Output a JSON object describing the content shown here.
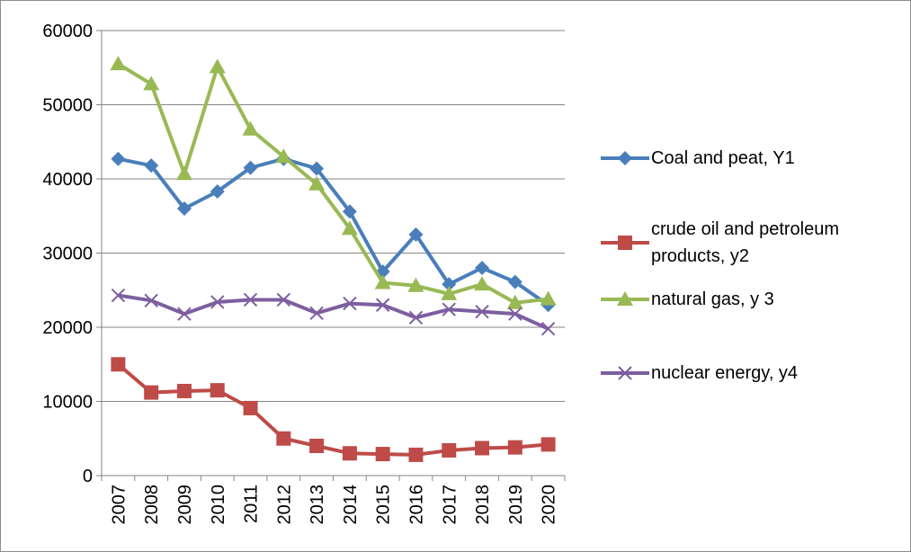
{
  "chart_data": {
    "type": "line",
    "categories": [
      "2007",
      "2008",
      "2009",
      "2010",
      "2011",
      "2012",
      "2013",
      "2014",
      "2015",
      "2016",
      "2017",
      "2018",
      "2019",
      "2020"
    ],
    "series": [
      {
        "name": "Coal and peat, Y1",
        "color": "#4a7ebb",
        "marker": "diamond",
        "values": [
          42700,
          41800,
          36000,
          38300,
          41500,
          42700,
          41400,
          35600,
          27500,
          32500,
          25800,
          28000,
          26100,
          23000
        ]
      },
      {
        "name": "crude oil and petroleum products, y2",
        "color": "#be4b48",
        "marker": "square",
        "values": [
          15000,
          11200,
          11400,
          11500,
          9100,
          5000,
          4000,
          3000,
          2900,
          2800,
          3400,
          3700,
          3800,
          4200
        ]
      },
      {
        "name": "natural gas, y 3",
        "color": "#98b954",
        "marker": "triangle",
        "values": [
          55500,
          52800,
          40700,
          55100,
          46700,
          43000,
          39300,
          33300,
          26000,
          25600,
          24500,
          25800,
          23300,
          23800
        ]
      },
      {
        "name": "nuclear energy, y4",
        "color": "#7d5fa0",
        "marker": "x",
        "values": [
          24300,
          23600,
          21800,
          23400,
          23700,
          23700,
          21900,
          23200,
          23000,
          21300,
          22400,
          22100,
          21800,
          19800
        ]
      }
    ],
    "ylim": [
      0,
      60000
    ],
    "yticks": [
      0,
      10000,
      20000,
      30000,
      40000,
      50000,
      60000
    ],
    "grid": true,
    "legend": "right"
  }
}
